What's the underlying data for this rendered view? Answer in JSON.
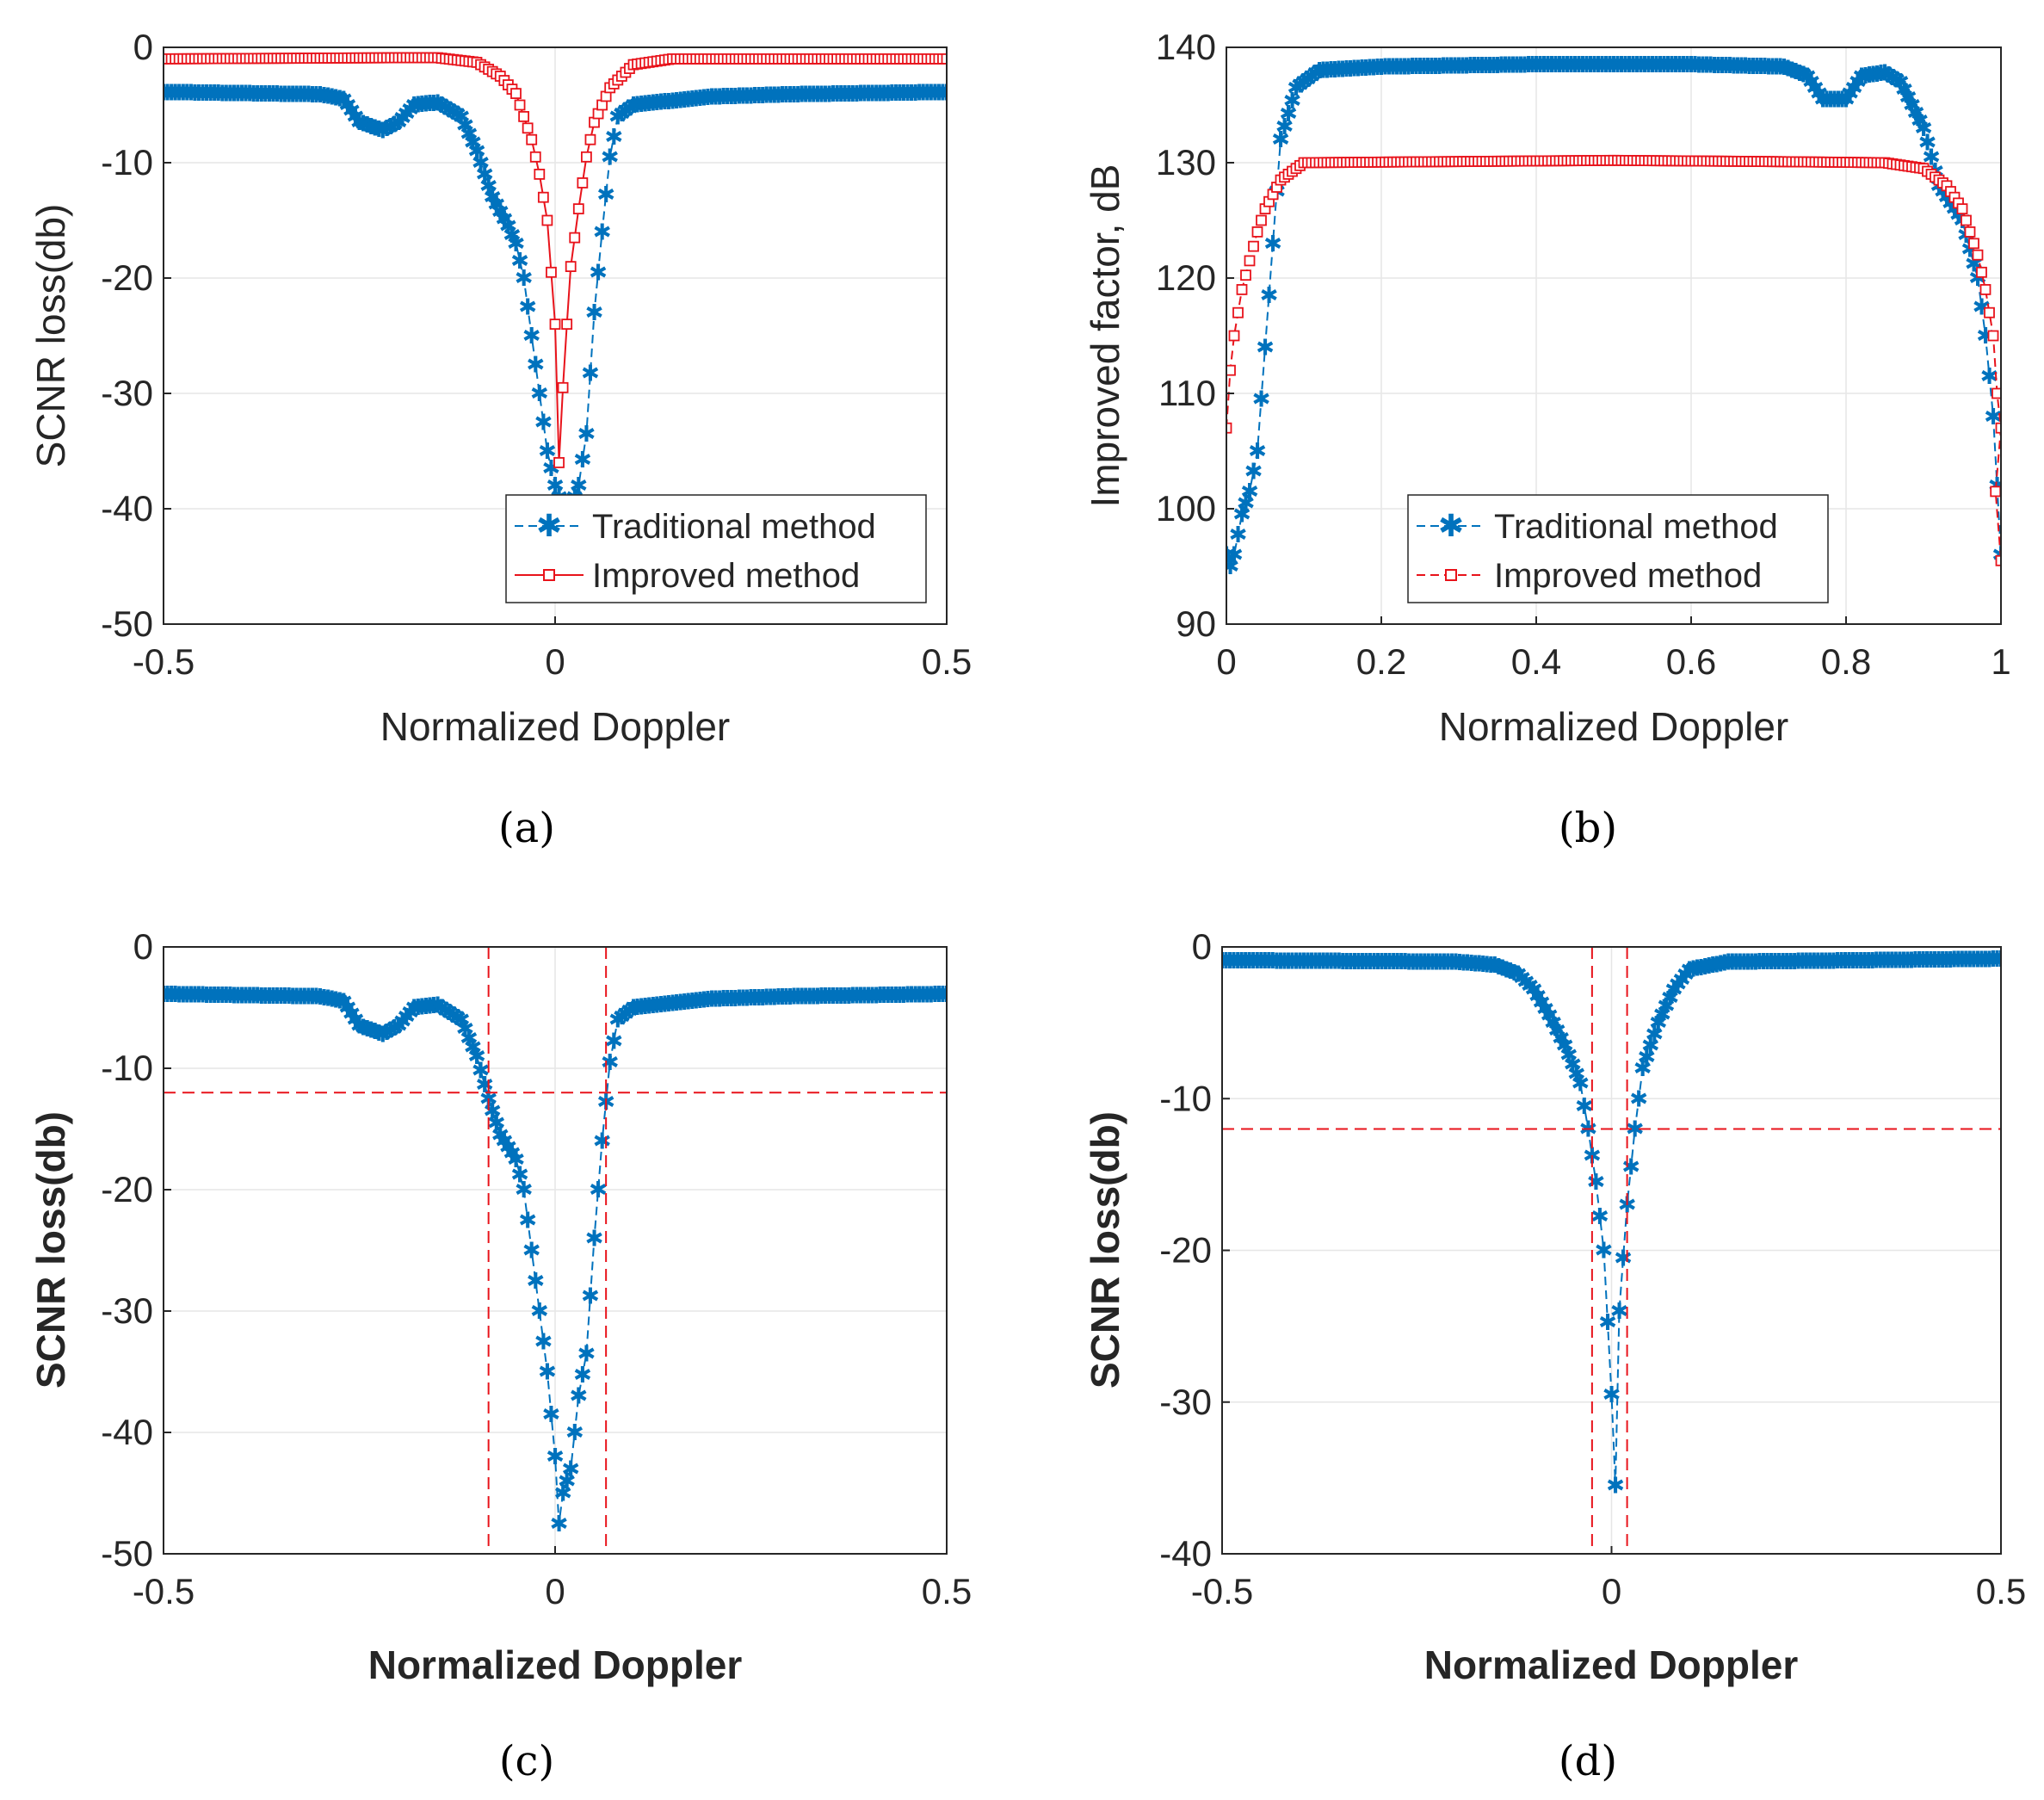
{
  "colors": {
    "traditional": "#0072bd",
    "improved": "#e8131b",
    "grid": "#e6e6e6",
    "axis": "#262626",
    "threshold": "#e8131b"
  },
  "chart_data": [
    {
      "panel": "a",
      "caption": "(a)",
      "type": "line",
      "xlabel": "Normalized Doppler",
      "ylabel": "SCNR loss(db)",
      "xlim": [
        -0.5,
        0.5
      ],
      "ylim": [
        -50,
        0
      ],
      "xticks": [
        -0.5,
        0,
        0.5
      ],
      "xtick_labels": [
        "-0.5",
        "0",
        "0.5"
      ],
      "yticks": [
        0,
        -10,
        -20,
        -30,
        -40,
        -50
      ],
      "ytick_labels": [
        "0",
        "-10",
        "-20",
        "-30",
        "-40",
        "-50"
      ],
      "grid": true,
      "legend": {
        "placement": "bottom-right",
        "entries": [
          "Traditional method",
          "Improved method"
        ]
      },
      "series": [
        {
          "name": "Traditional method",
          "style": "dashed-star",
          "points": [
            [
              -0.5,
              -3.9
            ],
            [
              -0.3,
              -4.1
            ],
            [
              -0.27,
              -4.5
            ],
            [
              -0.25,
              -6.5
            ],
            [
              -0.22,
              -7.2
            ],
            [
              -0.2,
              -6.5
            ],
            [
              -0.18,
              -5.0
            ],
            [
              -0.15,
              -4.8
            ],
            [
              -0.12,
              -6.0
            ],
            [
              -0.1,
              -9.0
            ],
            [
              -0.08,
              -13.0
            ],
            [
              -0.06,
              -15.5
            ],
            [
              -0.05,
              -17.0
            ],
            [
              -0.04,
              -20.0
            ],
            [
              -0.03,
              -25.0
            ],
            [
              -0.02,
              -30.0
            ],
            [
              -0.01,
              -35.0
            ],
            [
              0.0,
              -38.0
            ],
            [
              0.01,
              -40.0
            ],
            [
              0.02,
              -40.0
            ],
            [
              0.03,
              -38.0
            ],
            [
              0.04,
              -33.5
            ],
            [
              0.05,
              -23.0
            ],
            [
              0.06,
              -16.0
            ],
            [
              0.07,
              -9.5
            ],
            [
              0.08,
              -6.0
            ],
            [
              0.1,
              -5.0
            ],
            [
              0.2,
              -4.3
            ],
            [
              0.3,
              -4.1
            ],
            [
              0.5,
              -3.9
            ]
          ]
        },
        {
          "name": "Improved method",
          "style": "solid-square",
          "points": [
            [
              -0.5,
              -1.0
            ],
            [
              -0.2,
              -0.9
            ],
            [
              -0.15,
              -0.9
            ],
            [
              -0.1,
              -1.3
            ],
            [
              -0.07,
              -2.5
            ],
            [
              -0.05,
              -4.0
            ],
            [
              -0.04,
              -6.0
            ],
            [
              -0.03,
              -8.0
            ],
            [
              -0.02,
              -11.0
            ],
            [
              -0.01,
              -15.0
            ],
            [
              0.0,
              -24.0
            ],
            [
              0.005,
              -36.0
            ],
            [
              0.01,
              -29.5
            ],
            [
              0.015,
              -24.0
            ],
            [
              0.02,
              -19.0
            ],
            [
              0.03,
              -14.0
            ],
            [
              0.04,
              -9.5
            ],
            [
              0.05,
              -6.5
            ],
            [
              0.07,
              -3.5
            ],
            [
              0.1,
              -1.5
            ],
            [
              0.15,
              -1.0
            ],
            [
              0.5,
              -1.0
            ]
          ]
        }
      ]
    },
    {
      "panel": "b",
      "caption": "(b)",
      "type": "line",
      "xlabel": "Normalized Doppler",
      "ylabel": "Improved factor, dB",
      "xlim": [
        0,
        1
      ],
      "ylim": [
        90,
        140
      ],
      "xticks": [
        0,
        0.2,
        0.4,
        0.6,
        0.8,
        1
      ],
      "xtick_labels": [
        "0",
        "0.2",
        "0.4",
        "0.6",
        "0.8",
        "1"
      ],
      "yticks": [
        90,
        100,
        110,
        120,
        130,
        140
      ],
      "ytick_labels": [
        "90",
        "100",
        "110",
        "120",
        "130",
        "140"
      ],
      "grid": true,
      "legend": {
        "placement": "bottom-right",
        "entries": [
          "Traditional method",
          "Improved method"
        ]
      },
      "series": [
        {
          "name": "Traditional method",
          "style": "dashed-star",
          "points": [
            [
              0.0,
              96.0
            ],
            [
              0.005,
              95.0
            ],
            [
              0.01,
              96.0
            ],
            [
              0.02,
              99.5
            ],
            [
              0.03,
              101.5
            ],
            [
              0.04,
              105.0
            ],
            [
              0.05,
              114.0
            ],
            [
              0.06,
              123.0
            ],
            [
              0.07,
              132.0
            ],
            [
              0.09,
              136.5
            ],
            [
              0.12,
              138.0
            ],
            [
              0.2,
              138.3
            ],
            [
              0.4,
              138.5
            ],
            [
              0.6,
              138.5
            ],
            [
              0.72,
              138.3
            ],
            [
              0.75,
              137.5
            ],
            [
              0.77,
              135.5
            ],
            [
              0.8,
              135.5
            ],
            [
              0.82,
              137.5
            ],
            [
              0.85,
              137.8
            ],
            [
              0.87,
              137.0
            ],
            [
              0.9,
              133.0
            ],
            [
              0.92,
              128.0
            ],
            [
              0.95,
              125.0
            ],
            [
              0.97,
              120.0
            ],
            [
              0.98,
              115.0
            ],
            [
              0.99,
              108.0
            ],
            [
              0.995,
              102.0
            ],
            [
              1.0,
              96.0
            ]
          ]
        },
        {
          "name": "Improved method",
          "style": "dashed-square",
          "points": [
            [
              0.0,
              107.0
            ],
            [
              0.005,
              112.0
            ],
            [
              0.01,
              115.0
            ],
            [
              0.02,
              119.0
            ],
            [
              0.03,
              121.5
            ],
            [
              0.04,
              124.0
            ],
            [
              0.05,
              126.0
            ],
            [
              0.07,
              128.5
            ],
            [
              0.1,
              130.0
            ],
            [
              0.3,
              130.1
            ],
            [
              0.5,
              130.2
            ],
            [
              0.7,
              130.1
            ],
            [
              0.85,
              130.0
            ],
            [
              0.9,
              129.5
            ],
            [
              0.93,
              128.0
            ],
            [
              0.95,
              126.0
            ],
            [
              0.97,
              122.0
            ],
            [
              0.98,
              119.0
            ],
            [
              0.99,
              115.0
            ],
            [
              0.995,
              110.0
            ],
            [
              1.0,
              107.0
            ],
            [
              0.993,
              101.5
            ],
            [
              1.0,
              95.5
            ]
          ]
        }
      ]
    },
    {
      "panel": "c",
      "caption": "(c)",
      "type": "line",
      "xlabel": "Normalized Doppler",
      "ylabel": "SCNR loss(db)",
      "xlim": [
        -0.5,
        0.5
      ],
      "ylim": [
        -50,
        0
      ],
      "xticks": [
        -0.5,
        0,
        0.5
      ],
      "xtick_labels": [
        "-0.5",
        "0",
        "0.5"
      ],
      "yticks": [
        0,
        -10,
        -20,
        -30,
        -40,
        -50
      ],
      "ytick_labels": [
        "0",
        "-10",
        "-20",
        "-30",
        "-40",
        "-50"
      ],
      "grid": true,
      "threshold_y": -12,
      "threshold_x": [
        -0.085,
        0.065
      ],
      "series": [
        {
          "style": "dashed-star",
          "points": [
            [
              -0.5,
              -3.9
            ],
            [
              -0.3,
              -4.1
            ],
            [
              -0.27,
              -4.5
            ],
            [
              -0.25,
              -6.5
            ],
            [
              -0.22,
              -7.2
            ],
            [
              -0.2,
              -6.5
            ],
            [
              -0.18,
              -5.0
            ],
            [
              -0.15,
              -4.8
            ],
            [
              -0.12,
              -6.0
            ],
            [
              -0.1,
              -9.0
            ],
            [
              -0.085,
              -12.5
            ],
            [
              -0.07,
              -15.5
            ],
            [
              -0.05,
              -17.5
            ],
            [
              -0.04,
              -20.0
            ],
            [
              -0.03,
              -25.0
            ],
            [
              -0.02,
              -30.0
            ],
            [
              -0.01,
              -35.0
            ],
            [
              0.0,
              -42.0
            ],
            [
              0.005,
              -47.5
            ],
            [
              0.01,
              -45.0
            ],
            [
              0.02,
              -43.0
            ],
            [
              0.03,
              -37.0
            ],
            [
              0.04,
              -33.5
            ],
            [
              0.05,
              -24.0
            ],
            [
              0.06,
              -16.0
            ],
            [
              0.07,
              -9.5
            ],
            [
              0.08,
              -6.0
            ],
            [
              0.1,
              -5.0
            ],
            [
              0.2,
              -4.3
            ],
            [
              0.3,
              -4.1
            ],
            [
              0.5,
              -3.9
            ]
          ]
        }
      ]
    },
    {
      "panel": "d",
      "caption": "(d)",
      "type": "line",
      "xlabel": "Normalized Doppler",
      "ylabel": "SCNR loss(db)",
      "xlim": [
        -0.5,
        0.5
      ],
      "ylim": [
        -40,
        0
      ],
      "xticks": [
        -0.5,
        0,
        0.5
      ],
      "xtick_labels": [
        "-0.5",
        "0",
        "0.5"
      ],
      "yticks": [
        0,
        -10,
        -20,
        -30,
        -40
      ],
      "ytick_labels": [
        "0",
        "-10",
        "-20",
        "-30",
        "-40"
      ],
      "grid": true,
      "threshold_y": -12,
      "threshold_x": [
        -0.025,
        0.02
      ],
      "series": [
        {
          "style": "dashed-star",
          "points": [
            [
              -0.5,
              -0.9
            ],
            [
              -0.2,
              -1.0
            ],
            [
              -0.15,
              -1.2
            ],
            [
              -0.12,
              -1.8
            ],
            [
              -0.1,
              -2.8
            ],
            [
              -0.08,
              -4.5
            ],
            [
              -0.06,
              -6.5
            ],
            [
              -0.04,
              -9.0
            ],
            [
              -0.03,
              -12.0
            ],
            [
              -0.02,
              -15.5
            ],
            [
              -0.01,
              -20.0
            ],
            [
              0.0,
              -29.5
            ],
            [
              0.005,
              -35.5
            ],
            [
              0.01,
              -24.0
            ],
            [
              0.02,
              -17.0
            ],
            [
              0.03,
              -12.0
            ],
            [
              0.04,
              -8.0
            ],
            [
              0.06,
              -5.0
            ],
            [
              0.08,
              -2.8
            ],
            [
              0.1,
              -1.5
            ],
            [
              0.15,
              -1.0
            ],
            [
              0.5,
              -0.8
            ]
          ]
        }
      ]
    }
  ]
}
